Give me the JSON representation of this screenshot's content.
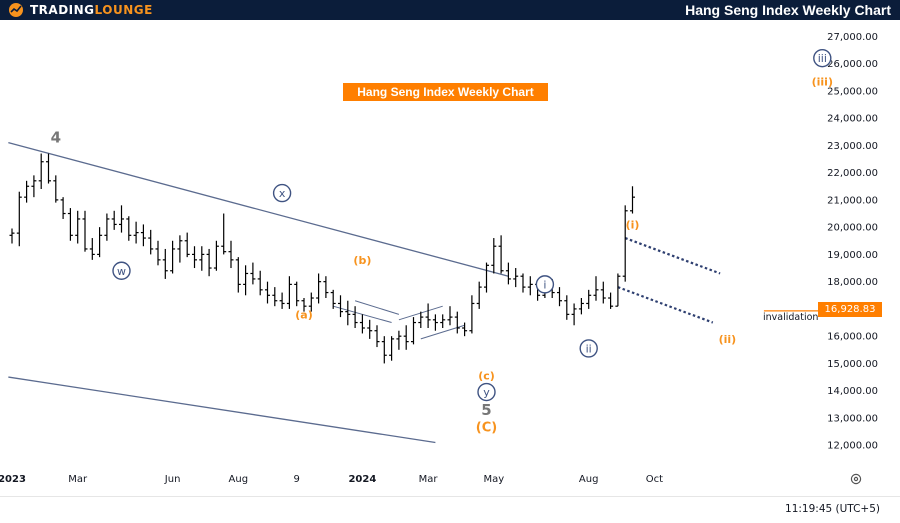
{
  "header": {
    "logo_text_1": "TRADING",
    "logo_text_2": "LOUNGE",
    "title": "Hang Seng Index Weekly Chart"
  },
  "colors": {
    "bar": "#000000",
    "trendline": "#5b6b8f",
    "wave_orange": "#f7931e",
    "wave_navy": "#3f5382",
    "price_label_bg": "#ff7f00"
  },
  "chart_data": {
    "type": "ohlc",
    "title": "Hang Seng Index Weekly Chart",
    "current_price_label": "16,928.83",
    "invalidation_label": "invalidation",
    "ylim": [
      11200,
      27600
    ],
    "y_ticks": [
      {
        "v": 27000,
        "t": "27,000.00"
      },
      {
        "v": 26000,
        "t": "26,000.00"
      },
      {
        "v": 25000,
        "t": "25,000.00"
      },
      {
        "v": 24000,
        "t": "24,000.00"
      },
      {
        "v": 23000,
        "t": "23,000.00"
      },
      {
        "v": 22000,
        "t": "22,000.00"
      },
      {
        "v": 21000,
        "t": "21,000.00"
      },
      {
        "v": 20000,
        "t": "20,000.00"
      },
      {
        "v": 19000,
        "t": "19,000.00"
      },
      {
        "v": 18000,
        "t": "18,000.00"
      },
      {
        "v": 17000,
        "t": "17,000.00"
      },
      {
        "v": 16000,
        "t": "16,000.00"
      },
      {
        "v": 15000,
        "t": "15,000.00"
      },
      {
        "v": 14000,
        "t": "14,000.00"
      },
      {
        "v": 13000,
        "t": "13,000.00"
      },
      {
        "v": 12000,
        "t": "12,000.00"
      }
    ],
    "x_ticks": [
      {
        "i": 0,
        "t": "2023",
        "bold": true
      },
      {
        "i": 9,
        "t": "Mar"
      },
      {
        "i": 22,
        "t": "Jun"
      },
      {
        "i": 31,
        "t": "Aug"
      },
      {
        "i": 39,
        "t": "9"
      },
      {
        "i": 48,
        "t": "2024",
        "bold": true
      },
      {
        "i": 57,
        "t": "Mar"
      },
      {
        "i": 66,
        "t": "May"
      },
      {
        "i": 79,
        "t": "Aug"
      },
      {
        "i": 88,
        "t": "Oct"
      }
    ],
    "ohlc": [
      [
        19700,
        19950,
        19400,
        19780
      ],
      [
        19780,
        21300,
        19300,
        21100
      ],
      [
        21100,
        21700,
        20900,
        21500
      ],
      [
        21500,
        21900,
        21100,
        21700
      ],
      [
        21700,
        22700,
        21400,
        22400
      ],
      [
        22400,
        22700,
        21600,
        21700
      ],
      [
        21700,
        21900,
        20900,
        21000
      ],
      [
        21000,
        21100,
        20300,
        20500
      ],
      [
        20500,
        20700,
        19500,
        19700
      ],
      [
        19700,
        20600,
        19400,
        20300
      ],
      [
        20300,
        20600,
        19100,
        19200
      ],
      [
        19200,
        19600,
        18800,
        19000
      ],
      [
        19000,
        20000,
        18900,
        19700
      ],
      [
        19700,
        20500,
        19500,
        20300
      ],
      [
        20300,
        20600,
        19900,
        20100
      ],
      [
        20100,
        20800,
        19800,
        20300
      ],
      [
        20300,
        20400,
        19500,
        19700
      ],
      [
        19700,
        20200,
        19400,
        19800
      ],
      [
        19800,
        20100,
        19300,
        19600
      ],
      [
        19600,
        19900,
        19000,
        19200
      ],
      [
        19200,
        19500,
        18600,
        18800
      ],
      [
        18800,
        19200,
        18100,
        18400
      ],
      [
        18400,
        19500,
        18300,
        19200
      ],
      [
        19200,
        19700,
        18700,
        19500
      ],
      [
        19500,
        19800,
        18900,
        19000
      ],
      [
        19000,
        19300,
        18500,
        18800
      ],
      [
        18800,
        19300,
        18400,
        19000
      ],
      [
        19000,
        19200,
        18200,
        18500
      ],
      [
        18500,
        19500,
        18400,
        19300
      ],
      [
        19300,
        20500,
        19000,
        19100
      ],
      [
        19100,
        19500,
        18500,
        18800
      ],
      [
        18800,
        18900,
        17600,
        17900
      ],
      [
        17900,
        18600,
        17500,
        18300
      ],
      [
        18300,
        18700,
        17900,
        18100
      ],
      [
        18100,
        18400,
        17500,
        17700
      ],
      [
        17700,
        18000,
        17200,
        17500
      ],
      [
        17500,
        17800,
        17100,
        17300
      ],
      [
        17300,
        17600,
        17000,
        17200
      ],
      [
        17200,
        18200,
        17000,
        17900
      ],
      [
        17900,
        18000,
        17100,
        17300
      ],
      [
        17300,
        17400,
        16900,
        17100
      ],
      [
        17100,
        17600,
        16900,
        17400
      ],
      [
        17400,
        18300,
        17200,
        18000
      ],
      [
        18000,
        18200,
        17400,
        17600
      ],
      [
        17600,
        17700,
        17000,
        17200
      ],
      [
        17200,
        17500,
        16700,
        16900
      ],
      [
        16900,
        17300,
        16400,
        16800
      ],
      [
        16800,
        17100,
        16300,
        16500
      ],
      [
        16500,
        16800,
        16100,
        16300
      ],
      [
        16300,
        16600,
        15900,
        16200
      ],
      [
        16200,
        16400,
        15600,
        15800
      ],
      [
        15800,
        16000,
        15000,
        15300
      ],
      [
        15300,
        16000,
        15100,
        15900
      ],
      [
        15900,
        16200,
        15500,
        16000
      ],
      [
        16000,
        16400,
        15500,
        15800
      ],
      [
        15800,
        16700,
        15700,
        16500
      ],
      [
        16500,
        16900,
        16300,
        16700
      ],
      [
        16700,
        17200,
        16300,
        16600
      ],
      [
        16600,
        16800,
        16200,
        16500
      ],
      [
        16500,
        16800,
        16300,
        16600
      ],
      [
        16600,
        17100,
        16400,
        16700
      ],
      [
        16700,
        16900,
        16100,
        16300
      ],
      [
        16300,
        16500,
        16000,
        16200
      ],
      [
        16200,
        17500,
        16100,
        17200
      ],
      [
        17200,
        18000,
        17000,
        17800
      ],
      [
        17800,
        18700,
        17600,
        18600
      ],
      [
        18600,
        19600,
        18300,
        19300
      ],
      [
        19300,
        19700,
        18300,
        18400
      ],
      [
        18400,
        18700,
        17900,
        18100
      ],
      [
        18100,
        18500,
        17800,
        18200
      ],
      [
        18200,
        18300,
        17600,
        17800
      ],
      [
        17800,
        18200,
        17500,
        17900
      ],
      [
        17900,
        18000,
        17300,
        17500
      ],
      [
        17500,
        18200,
        17400,
        18000
      ],
      [
        18000,
        18100,
        17400,
        17600
      ],
      [
        17600,
        17800,
        17100,
        17300
      ],
      [
        17300,
        17500,
        16600,
        16800
      ],
      [
        16800,
        17200,
        16400,
        17000
      ],
      [
        17000,
        17400,
        16800,
        17200
      ],
      [
        17200,
        17700,
        17000,
        17500
      ],
      [
        17500,
        18200,
        17300,
        17700
      ],
      [
        17700,
        18000,
        17200,
        17400
      ],
      [
        17400,
        17600,
        17000,
        17100
      ],
      [
        17100,
        18300,
        17100,
        18200
      ],
      [
        18200,
        20800,
        18000,
        20600
      ],
      [
        20600,
        21500,
        20500,
        21100
      ]
    ],
    "trendlines": [
      {
        "p1": [
          -0.5,
          23100
        ],
        "p2": [
          68,
          18200
        ]
      },
      {
        "p1": [
          -0.5,
          14500
        ],
        "p2": [
          58,
          12100
        ]
      },
      {
        "p1": [
          44,
          17100
        ],
        "p2": [
          52,
          16500
        ],
        "style": "solid"
      },
      {
        "p1": [
          47,
          17300
        ],
        "p2": [
          53,
          16800
        ],
        "style": "solid"
      },
      {
        "p1": [
          53,
          16600
        ],
        "p2": [
          59,
          17100
        ],
        "style": "solid"
      },
      {
        "p1": [
          56,
          15900
        ],
        "p2": [
          62,
          16400
        ],
        "style": "solid"
      },
      {
        "p1": [
          84,
          19600
        ],
        "p2": [
          97,
          18300
        ],
        "style": "dashed"
      },
      {
        "p1": [
          83,
          17800
        ],
        "p2": [
          96,
          16500
        ],
        "style": "dashed"
      }
    ],
    "invalidation_line": {
      "from": 103,
      "to": 116,
      "value": 16928.83
    },
    "wave_labels": [
      {
        "text": "4",
        "i": 6,
        "v": 23250,
        "color": "gray",
        "circle": false,
        "size": 15
      },
      {
        "text": "w",
        "i": 15,
        "v": 18400,
        "color": "navy",
        "circle": true
      },
      {
        "text": "x",
        "i": 37,
        "v": 21250,
        "color": "navy",
        "circle": true
      },
      {
        "text": "(b)",
        "i": 48,
        "v": 18800,
        "color": "orange",
        "circle": false
      },
      {
        "text": "(a)",
        "i": 40,
        "v": 16800,
        "color": "orange",
        "circle": false
      },
      {
        "text": "(c)",
        "i": 65,
        "v": 14550,
        "color": "orange",
        "circle": false
      },
      {
        "text": "y",
        "i": 65,
        "v": 13950,
        "color": "navy",
        "circle": true
      },
      {
        "text": "5",
        "i": 65,
        "v": 13250,
        "color": "gray",
        "circle": false,
        "size": 15
      },
      {
        "text": "(C)",
        "i": 65,
        "v": 12650,
        "color": "orange",
        "circle": false,
        "size": 13
      },
      {
        "text": "i",
        "i": 73,
        "v": 17900,
        "color": "navy",
        "circle": true
      },
      {
        "text": "ii",
        "i": 79,
        "v": 15550,
        "color": "navy",
        "circle": true
      },
      {
        "text": "(i)",
        "i": 85,
        "v": 20100,
        "color": "orange",
        "circle": false
      },
      {
        "text": "(ii)",
        "i": 98,
        "v": 15900,
        "color": "orange",
        "circle": false
      },
      {
        "text": "iii",
        "i": 111,
        "v": 26200,
        "color": "navy",
        "circle": true
      },
      {
        "text": "(iii)",
        "i": 111,
        "v": 25350,
        "color": "orange",
        "circle": false
      }
    ]
  },
  "footer": {
    "clock": "11:19:45 (UTC+5)"
  }
}
